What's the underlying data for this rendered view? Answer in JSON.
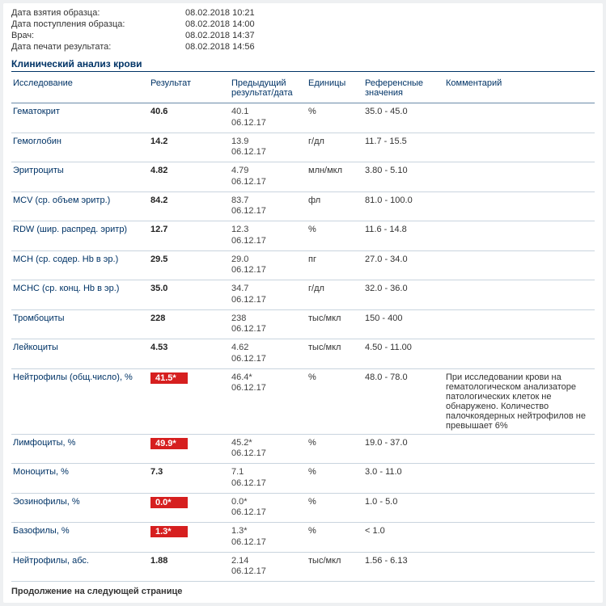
{
  "meta": {
    "labels": {
      "sample_taken": "Дата взятия образца:",
      "sample_received": "Дата поступления образца:",
      "doctor": "Врач:",
      "printed": "Дата печати результата:"
    },
    "values": {
      "sample_taken": "08.02.2018 10:21",
      "sample_received": "08.02.2018 14:00",
      "doctor": "08.02.2018 14:37",
      "printed": "08.02.2018 14:56"
    }
  },
  "section_title": "Клинический анализ крови",
  "columns": {
    "test": "Исследование",
    "result": "Результат",
    "prev": "Предыдущий результат/дата",
    "units": "Единицы",
    "ref": "Референсные значения",
    "comment": "Комментарий"
  },
  "rows": [
    {
      "test": "Гематокрит",
      "result": "40.6",
      "flag": false,
      "prev": "40.1\n06.12.17",
      "units": "%",
      "ref": "35.0 - 45.0",
      "comment": ""
    },
    {
      "test": "Гемоглобин",
      "result": "14.2",
      "flag": false,
      "prev": "13.9\n06.12.17",
      "units": "г/дл",
      "ref": "11.7 - 15.5",
      "comment": ""
    },
    {
      "test": "Эритроциты",
      "result": "4.82",
      "flag": false,
      "prev": "4.79\n06.12.17",
      "units": "млн/мкл",
      "ref": "3.80 - 5.10",
      "comment": ""
    },
    {
      "test": "MCV (ср. объем эритр.)",
      "result": "84.2",
      "flag": false,
      "prev": "83.7\n06.12.17",
      "units": "фл",
      "ref": "81.0 - 100.0",
      "comment": ""
    },
    {
      "test": "RDW (шир. распред. эритр)",
      "result": "12.7",
      "flag": false,
      "prev": "12.3\n06.12.17",
      "units": "%",
      "ref": "11.6 - 14.8",
      "comment": ""
    },
    {
      "test": "MCH (ср. содер. Hb в эр.)",
      "result": "29.5",
      "flag": false,
      "prev": "29.0\n06.12.17",
      "units": "пг",
      "ref": "27.0 - 34.0",
      "comment": ""
    },
    {
      "test": "MCHC (ср. конц. Hb в эр.)",
      "result": "35.0",
      "flag": false,
      "prev": "34.7\n06.12.17",
      "units": "г/дл",
      "ref": "32.0 - 36.0",
      "comment": ""
    },
    {
      "test": "Тромбоциты",
      "result": "228",
      "flag": false,
      "prev": "238\n06.12.17",
      "units": "тыс/мкл",
      "ref": "150 - 400",
      "comment": ""
    },
    {
      "test": "Лейкоциты",
      "result": "4.53",
      "flag": false,
      "prev": "4.62\n06.12.17",
      "units": "тыс/мкл",
      "ref": "4.50 - 11.00",
      "comment": ""
    },
    {
      "test": "Нейтрофилы (общ.число), %",
      "result": "41.5*",
      "flag": true,
      "prev": "46.4*\n06.12.17",
      "units": "%",
      "ref": "48.0 - 78.0",
      "comment": "При исследовании крови на гематологическом анализаторе патологических клеток не обнаружено. Количество палочкоядерных нейтрофилов не превышает 6%"
    },
    {
      "test": "Лимфоциты, %",
      "result": "49.9*",
      "flag": true,
      "prev": "45.2*\n06.12.17",
      "units": "%",
      "ref": "19.0 - 37.0",
      "comment": ""
    },
    {
      "test": "Моноциты, %",
      "result": "7.3",
      "flag": false,
      "prev": "7.1\n06.12.17",
      "units": "%",
      "ref": "3.0 - 11.0",
      "comment": ""
    },
    {
      "test": "Эозинофилы, %",
      "result": "0.0*",
      "flag": true,
      "prev": "0.0*\n06.12.17",
      "units": "%",
      "ref": "1.0 - 5.0",
      "comment": ""
    },
    {
      "test": "Базофилы, %",
      "result": "1.3*",
      "flag": true,
      "prev": "1.3*\n06.12.17",
      "units": "%",
      "ref": "< 1.0",
      "comment": ""
    },
    {
      "test": "Нейтрофилы, абс.",
      "result": "1.88",
      "flag": false,
      "prev": "2.14\n06.12.17",
      "units": "тыс/мкл",
      "ref": "1.56 - 6.13",
      "comment": ""
    }
  ],
  "footer_note": "Продолжение на следующей странице"
}
